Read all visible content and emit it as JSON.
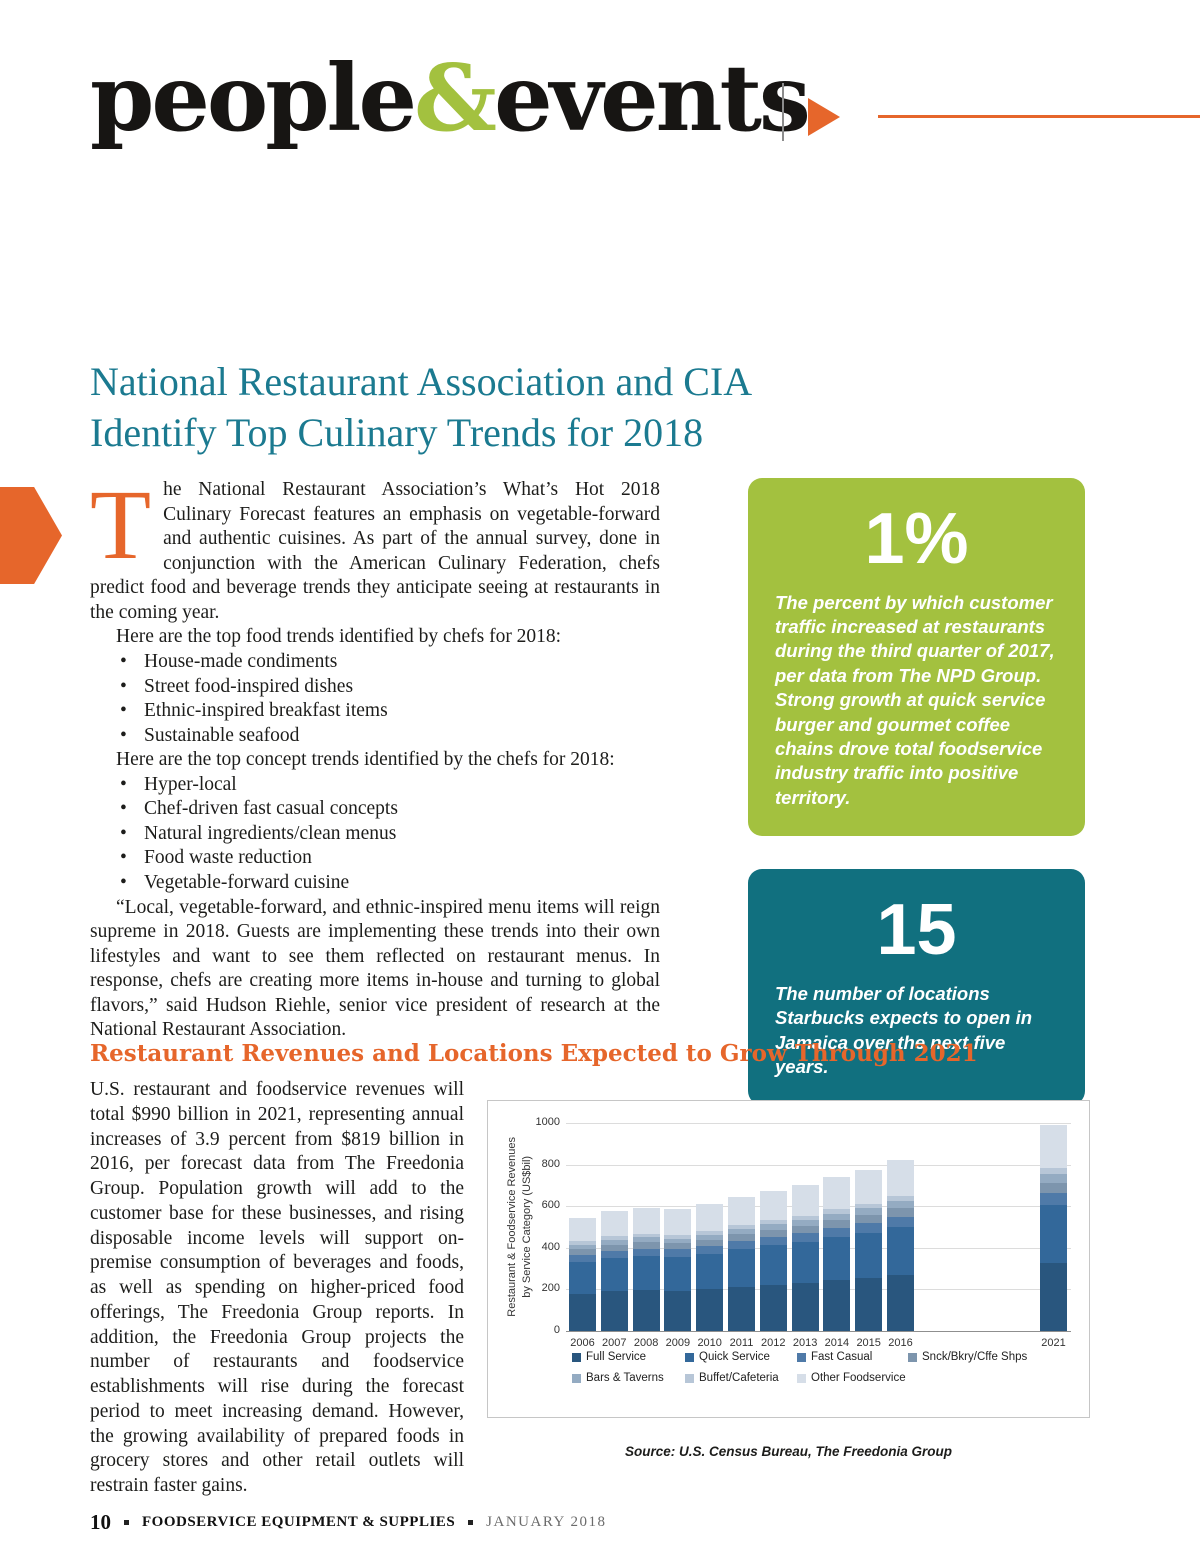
{
  "theme": {
    "orange": "#e6662b",
    "lime": "#a3c13f",
    "teal": "#1b7a90",
    "teal_dark": "#11707f",
    "text": "#1d1d1b"
  },
  "masthead": {
    "word_left": "people",
    "ampersand": "&",
    "word_right": "events"
  },
  "article": {
    "title_line1": "National Restaurant Association and CIA",
    "title_line2": "Identify Top Culinary Trends for 2018",
    "drop_cap": "T",
    "intro_after_dropcap": "he National Restaurant Association’s What’s Hot 2018 Culinary Forecast features an emphasis on vegetable-forward and authentic cuisines. As part of the annual survey, done in conjunction with the American Culinary Federation, chefs predict food and beverage trends they anticipate seeing at restaurants in the coming year.",
    "food_trends_intro": "Here are the top food trends identified by chefs for 2018:",
    "food_trends": [
      "House-made condiments",
      "Street food-inspired dishes",
      "Ethnic-inspired breakfast items",
      "Sustainable seafood"
    ],
    "concept_trends_intro": "Here are the top concept trends identified by the chefs for 2018:",
    "concept_trends": [
      "Hyper-local",
      "Chef-driven fast casual concepts",
      "Natural ingredients/clean menus",
      "Food waste reduction",
      "Vegetable-forward cuisine"
    ],
    "closing_quote": "“Local, vegetable-forward, and ethnic-inspired menu items will reign supreme in 2018. Guests are implementing these trends into their own lifestyles and want to see them reflected on restaurant menus. In response, chefs are creating more items in-house and turning to global flavors,” said Hudson Riehle, senior vice president of research at the National Restaurant Association."
  },
  "stat_boxes": [
    {
      "value": "1%",
      "caption": "The percent by which customer traffic increased at restaurants during the third quarter of 2017, per data from The NPD Group. Strong growth at quick service burger and gourmet coffee chains drove total foodservice industry traffic into positive territory.",
      "background": "#a3c13f"
    },
    {
      "value": "15",
      "caption": "The number of locations Starbucks expects to open in Jamaica over the next five years.",
      "background": "#11707f"
    }
  ],
  "section2": {
    "heading": "Restaurant Revenues and Locations Expected to Grow Through 2021",
    "body": "U.S. restaurant and foodservice revenues will total $990 billion in 2021, representing annual increases of 3.9 percent from $819 billion in 2016, per forecast data from The Freedonia Group. Population growth will add to the customer base for these businesses, and rising disposable income levels will support on-premise consumption of beverages and foods, as well as spending on higher-priced food offerings, The Freedonia Group reports. In addition, the Freedonia Group projects the number of restaurants and foodservice establishments will rise during the forecast period to meet increasing demand. However, the growing availability of prepared foods in grocery stores and other retail outlets will restrain faster gains."
  },
  "chart_data": {
    "type": "bar",
    "stacked": true,
    "title": "Restaurant Revenues and Locations Expected to Grow Through 2021",
    "ylabel": "Restaurant & Foodservice Revenues\nby Service Category (US$bil)",
    "xlabel": "",
    "ylim": [
      0,
      1000
    ],
    "yticks": [
      0,
      200,
      400,
      600,
      800,
      1000
    ],
    "grid": true,
    "legend_position": "bottom",
    "categories": [
      "2006",
      "2007",
      "2008",
      "2009",
      "2010",
      "2011",
      "2012",
      "2013",
      "2014",
      "2015",
      "2016",
      "2021"
    ],
    "series": [
      {
        "name": "Full Service",
        "color": "#29567e",
        "values": [
          180,
          190,
          195,
          193,
          201,
          213,
          223,
          231,
          244,
          256,
          271,
          327
        ]
      },
      {
        "name": "Quick Service",
        "color": "#33689a",
        "values": [
          153,
          161,
          165,
          164,
          171,
          181,
          189,
          196,
          207,
          217,
          230,
          277
        ]
      },
      {
        "name": "Fast Casual",
        "color": "#4f7aa8",
        "values": [
          33,
          35,
          36,
          35,
          37,
          39,
          41,
          42,
          45,
          47,
          49,
          59
        ]
      },
      {
        "name": "Snck/Bkry/Cffe Shps",
        "color": "#7d95ad",
        "values": [
          27,
          29,
          30,
          29,
          30,
          32,
          34,
          35,
          37,
          39,
          41,
          50
        ]
      },
      {
        "name": "Bars & Taverns",
        "color": "#94abc2",
        "values": [
          22,
          23,
          24,
          23,
          24,
          26,
          27,
          28,
          30,
          31,
          33,
          40
        ]
      },
      {
        "name": "Buffet/Cafeteria",
        "color": "#b7c6d7",
        "values": [
          16,
          17,
          17,
          17,
          18,
          19,
          20,
          21,
          22,
          23,
          25,
          30
        ]
      },
      {
        "name": "Other Foodservice",
        "color": "#d6dee8",
        "values": [
          114,
          120,
          123,
          124,
          129,
          135,
          141,
          147,
          155,
          162,
          171,
          207
        ]
      }
    ],
    "totals": [
      545,
      575,
      590,
      585,
      610,
      645,
      675,
      700,
      740,
      775,
      820,
      990
    ],
    "source": "Source: U.S. Census Bureau, The Freedonia Group"
  },
  "footer": {
    "page_number": "10",
    "magazine": "FOODSERVICE EQUIPMENT & SUPPLIES",
    "issue": "JANUARY 2018"
  }
}
